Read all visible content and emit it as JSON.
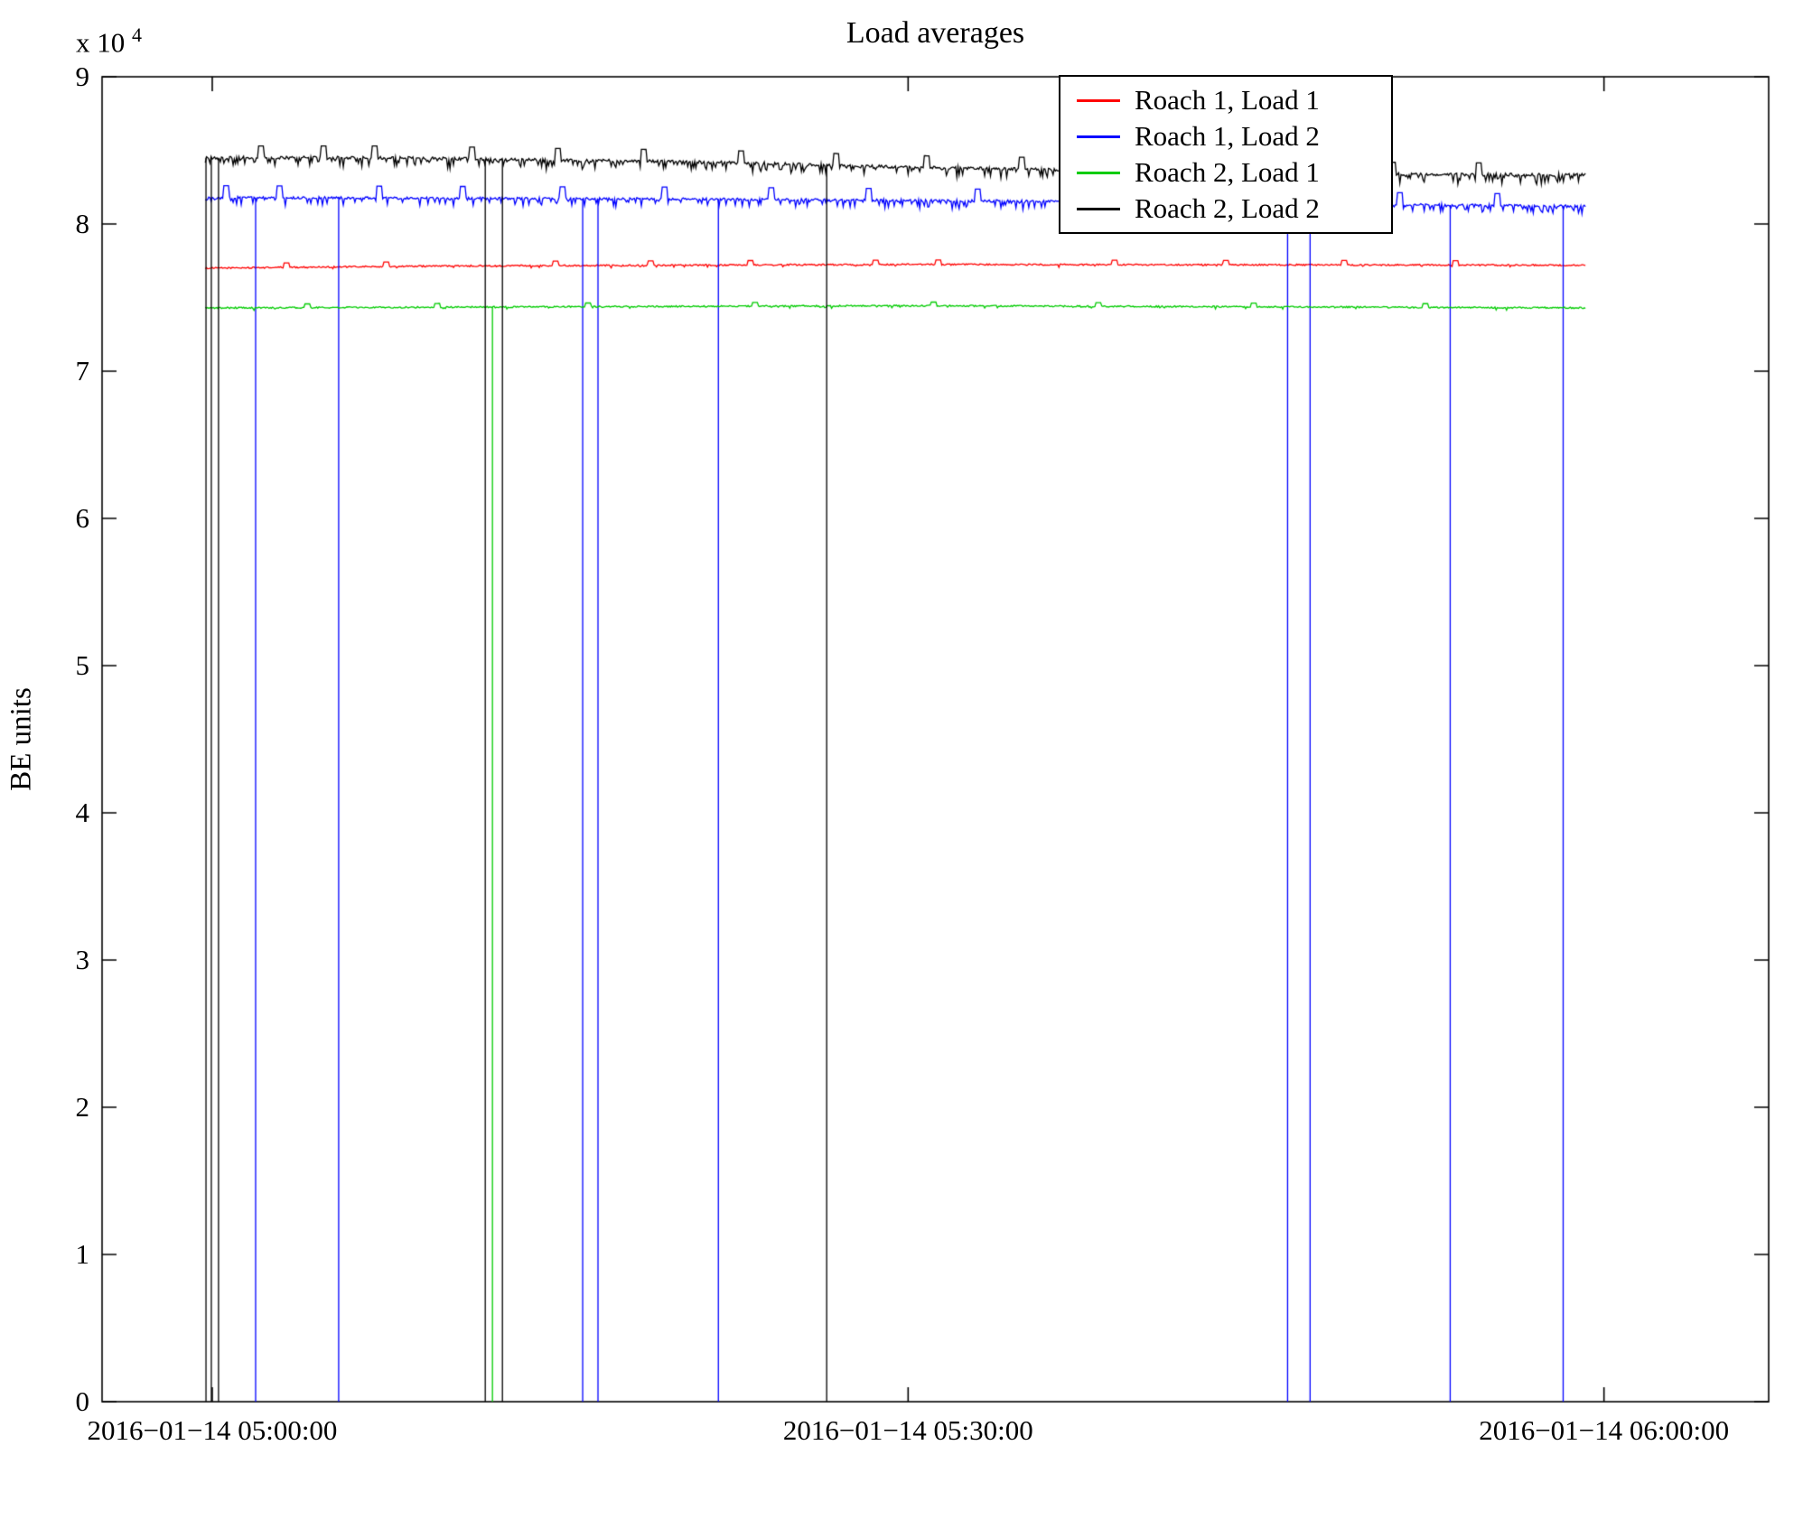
{
  "chart_data": {
    "type": "line",
    "title": "Load averages",
    "ylabel": "BE units",
    "xlabel": "",
    "y_exponent_prefix": "x 10",
    "y_exponent": "4",
    "ylim": [
      0,
      90000
    ],
    "y_tick_scale": 10000,
    "y_ticks": [
      0,
      1,
      2,
      3,
      4,
      5,
      6,
      7,
      8,
      9
    ],
    "x_range_min": [
      -4.75,
      67.1
    ],
    "x_ticks_min": [
      0,
      30,
      60
    ],
    "x_tick_labels": [
      "2016−01−14 05:00:00",
      "2016−01−14 05:30:00",
      "2016−01−14 06:00:00"
    ],
    "grid": false,
    "legend_position": "top-right",
    "data_start_min": -0.3,
    "data_end_min": 59.2,
    "series": [
      {
        "name": "Roach 1, Load 1",
        "color": "#ff0000",
        "trend": [
          [
            -0.3,
            77000
          ],
          [
            10,
            77150
          ],
          [
            30,
            77250
          ],
          [
            59.2,
            77200
          ]
        ],
        "noise": 50,
        "dip_prob": 0.05,
        "dip_depth": 150,
        "spike_height": 300,
        "spike_times": [
          3.2,
          7.5,
          14.8,
          18.9,
          23.2,
          28.6,
          31.3,
          38.9,
          43.7,
          48.8,
          53.6
        ],
        "dropout_times": []
      },
      {
        "name": "Roach 1, Load 2",
        "color": "#0000ff",
        "trend": [
          [
            -0.3,
            81800
          ],
          [
            20,
            81700
          ],
          [
            40,
            81500
          ],
          [
            59.2,
            81200
          ]
        ],
        "noise": 80,
        "dip_prob": 0.25,
        "dip_depth": 500,
        "spike_height": 800,
        "spike_times": [
          0.6,
          2.9,
          7.2,
          10.8,
          15.1,
          19.5,
          24.1,
          28.3,
          33.0,
          37.6,
          42.1,
          46.8,
          51.2,
          55.4
        ],
        "dropout_times": [
          1.87,
          5.45,
          15.97,
          16.63,
          21.82,
          46.36,
          47.33,
          53.37,
          58.24
        ]
      },
      {
        "name": "Roach 2, Load 1",
        "color": "#00cc00",
        "trend": [
          [
            -0.3,
            74300
          ],
          [
            30,
            74450
          ],
          [
            59.2,
            74300
          ]
        ],
        "noise": 50,
        "dip_prob": 0.05,
        "dip_depth": 150,
        "spike_height": 250,
        "spike_times": [
          4.1,
          9.7,
          16.2,
          23.4,
          31.1,
          38.2,
          44.9,
          52.3
        ],
        "dropout_times": [
          12.08
        ]
      },
      {
        "name": "Roach 2, Load 2",
        "color": "#000000",
        "trend": [
          [
            -0.3,
            84500
          ],
          [
            8,
            84500
          ],
          [
            14,
            84350
          ],
          [
            22,
            84200
          ],
          [
            30,
            83850
          ],
          [
            38,
            83650
          ],
          [
            46,
            83450
          ],
          [
            54,
            83350
          ],
          [
            59.2,
            83350
          ]
        ],
        "noise": 100,
        "dip_prob": 0.3,
        "dip_depth": 600,
        "spike_height": 800,
        "spike_times": [
          2.1,
          4.8,
          7.0,
          11.2,
          14.9,
          18.6,
          22.8,
          26.9,
          30.8,
          34.9,
          39.2,
          43.1,
          47.0,
          50.9,
          54.6
        ],
        "dropout_times": [
          -0.27,
          -0.04,
          0.27,
          11.77,
          12.51,
          26.49
        ]
      }
    ]
  }
}
